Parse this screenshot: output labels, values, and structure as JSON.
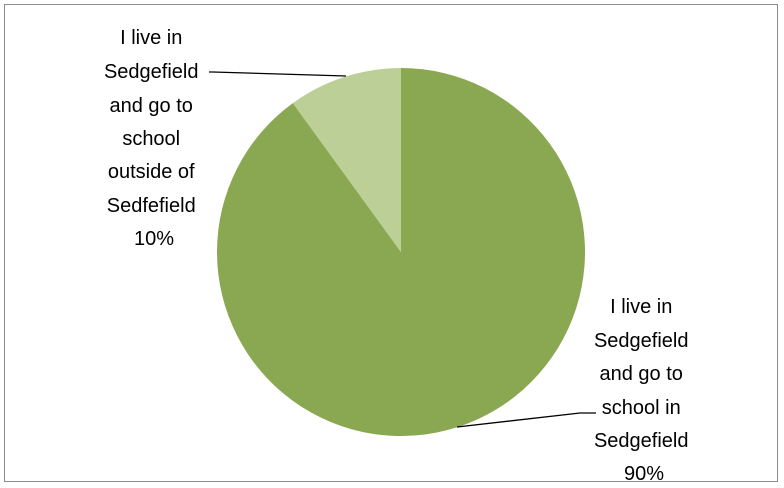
{
  "chart_data": {
    "type": "pie",
    "title": "",
    "slices": [
      {
        "name": "I live in Sedgefield and go to school in Sedgefield",
        "value": 90,
        "percent_label": "90%",
        "label_lines": [
          "I live in",
          "Sedgefield",
          "and go to",
          "school in",
          "Sedgefield",
          "90%"
        ],
        "color": "#8aa751"
      },
      {
        "name": "I live in Sedgefield and go to school outside of Sedfefield",
        "value": 10,
        "percent_label": "10%",
        "label_lines": [
          "I live in",
          "Sedgefield",
          "and go to",
          "school",
          "outside of",
          "Sedfefield",
          "10%"
        ],
        "color": "#bccf96"
      }
    ],
    "start_angle_deg": 0,
    "direction": "clockwise",
    "legend": "none"
  }
}
